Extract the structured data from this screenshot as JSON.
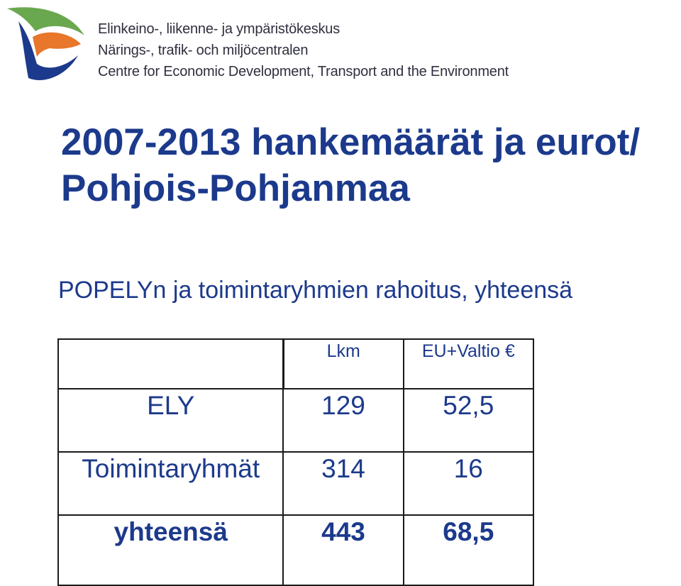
{
  "header": {
    "logo_icon": "ely-centre-leaf-logo",
    "names": [
      "Elinkeino-, liikenne- ja ympäristökeskus",
      "Närings-, trafik- och miljöcentralen",
      "Centre for Economic Development, Transport and the Environment"
    ],
    "colors": {
      "green": "#6aa84f",
      "orange": "#e8762b",
      "blue": "#1c3a8c"
    }
  },
  "title": {
    "line1": "2007-2013 hankemäärät ja eurot/",
    "line2": "Pohjois-Pohjanmaa"
  },
  "subtitle": "POPELYn ja toimintaryhmien rahoitus, yhteensä",
  "table": {
    "headers": [
      "",
      "Lkm",
      "EU+Valtio €"
    ],
    "rows": [
      [
        "ELY",
        "129",
        "52,5"
      ],
      [
        "Toimintaryhmät",
        "314",
        "16"
      ],
      [
        "yhteensä",
        "443",
        "68,5"
      ]
    ]
  },
  "text_color": "#1c3a8c"
}
